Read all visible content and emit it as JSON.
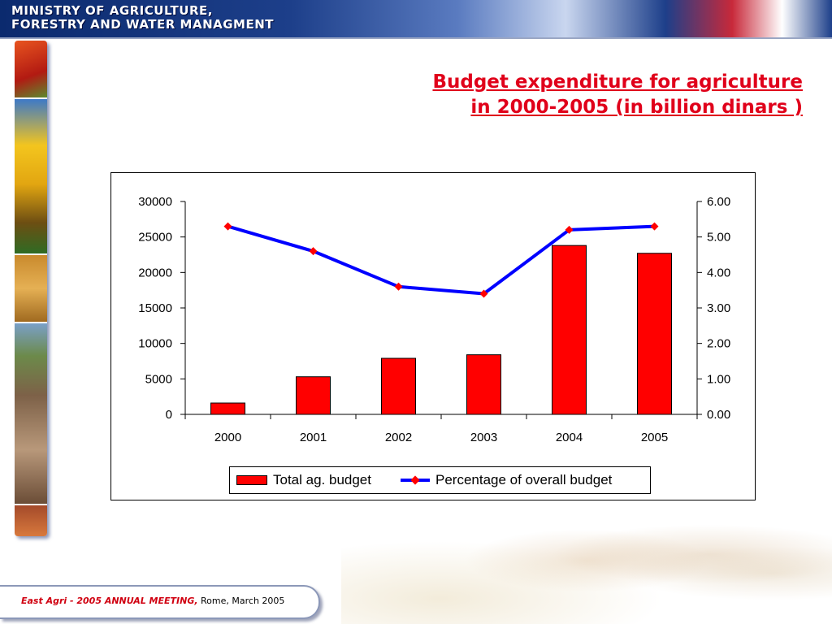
{
  "header": {
    "line1": "MINISTRY OF AGRICULTURE,",
    "line2": "FORESTRY AND WATER MANAGMENT"
  },
  "slide": {
    "title_line1": "Budget expenditure for agriculture",
    "title_line2": "in 2000-2005 (in billion dinars )"
  },
  "chart_data": {
    "type": "bar",
    "categories": [
      "2000",
      "2001",
      "2002",
      "2003",
      "2004",
      "2005"
    ],
    "series": [
      {
        "name": "Total ag. budget",
        "type": "bar",
        "axis": "left",
        "color": "#ff0000",
        "values": [
          1600,
          5300,
          7900,
          8400,
          23800,
          22700
        ]
      },
      {
        "name": "Percentage of overall budget",
        "type": "line",
        "axis": "right",
        "color": "#0000ff",
        "marker_color": "#ff0000",
        "values": [
          5.3,
          4.6,
          3.6,
          3.4,
          5.2,
          5.3
        ]
      }
    ],
    "y_left": {
      "lim": [
        0,
        30000
      ],
      "ticks": [
        "0",
        "5000",
        "10000",
        "15000",
        "20000",
        "25000",
        "30000"
      ]
    },
    "y_right": {
      "lim": [
        0,
        6
      ],
      "ticks": [
        "0.00",
        "1.00",
        "2.00",
        "3.00",
        "4.00",
        "5.00",
        "6.00"
      ]
    },
    "legend_position": "bottom",
    "grid": false
  },
  "footer": {
    "event": "East Agri - 2005 ANNUAL MEETING,",
    "location": " Rome, March 2005"
  }
}
